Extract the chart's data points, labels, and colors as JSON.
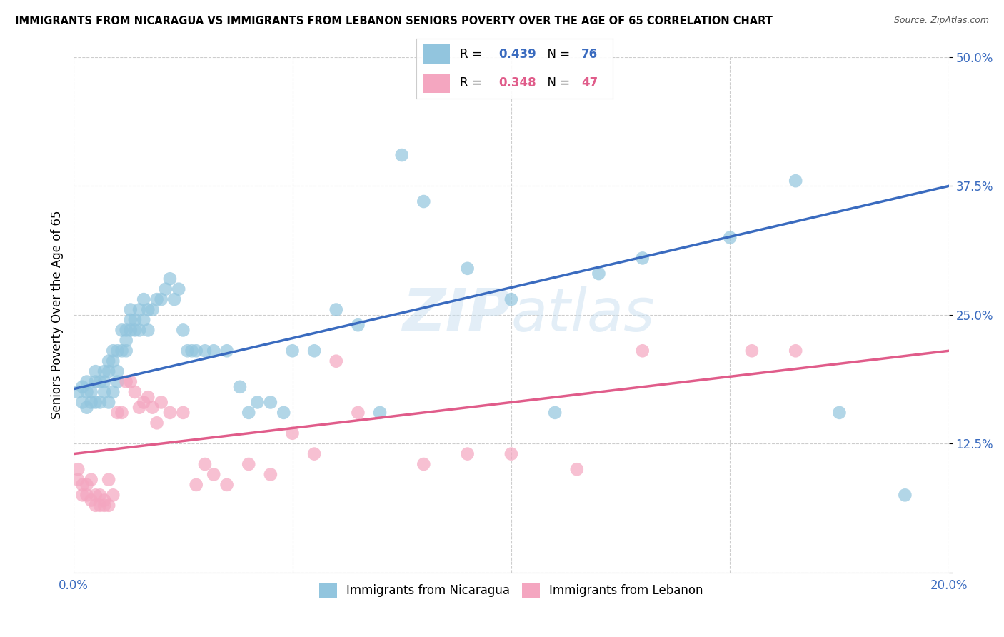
{
  "title": "IMMIGRANTS FROM NICARAGUA VS IMMIGRANTS FROM LEBANON SENIORS POVERTY OVER THE AGE OF 65 CORRELATION CHART",
  "source": "Source: ZipAtlas.com",
  "ylabel": "Seniors Poverty Over the Age of 65",
  "xlim": [
    0.0,
    0.2
  ],
  "ylim": [
    0.0,
    0.5
  ],
  "xticks": [
    0.0,
    0.05,
    0.1,
    0.15,
    0.2
  ],
  "xtick_labels": [
    "0.0%",
    "",
    "",
    "",
    "20.0%"
  ],
  "ytick_labels": [
    "",
    "12.5%",
    "25.0%",
    "37.5%",
    "50.0%"
  ],
  "yticks": [
    0.0,
    0.125,
    0.25,
    0.375,
    0.5
  ],
  "watermark": "ZIPatlas",
  "nicaragua_color": "#92c5de",
  "lebanon_color": "#f4a6c0",
  "nicaragua_line_color": "#3a6bbf",
  "lebanon_line_color": "#e05c8a",
  "nicaragua_R": 0.439,
  "nicaragua_N": 76,
  "lebanon_R": 0.348,
  "lebanon_N": 47,
  "nic_line_x0": 0.0,
  "nic_line_y0": 0.178,
  "nic_line_x1": 0.2,
  "nic_line_y1": 0.375,
  "leb_line_x0": 0.0,
  "leb_line_y0": 0.115,
  "leb_line_x1": 0.2,
  "leb_line_y1": 0.215,
  "nicaragua_points_x": [
    0.001,
    0.002,
    0.002,
    0.003,
    0.003,
    0.003,
    0.004,
    0.004,
    0.005,
    0.005,
    0.005,
    0.006,
    0.006,
    0.007,
    0.007,
    0.007,
    0.008,
    0.008,
    0.008,
    0.009,
    0.009,
    0.009,
    0.01,
    0.01,
    0.01,
    0.011,
    0.011,
    0.012,
    0.012,
    0.012,
    0.013,
    0.013,
    0.013,
    0.014,
    0.014,
    0.015,
    0.015,
    0.016,
    0.016,
    0.017,
    0.017,
    0.018,
    0.019,
    0.02,
    0.021,
    0.022,
    0.023,
    0.024,
    0.025,
    0.026,
    0.027,
    0.028,
    0.03,
    0.032,
    0.035,
    0.038,
    0.04,
    0.042,
    0.045,
    0.048,
    0.05,
    0.055,
    0.06,
    0.065,
    0.07,
    0.075,
    0.08,
    0.09,
    0.1,
    0.11,
    0.12,
    0.13,
    0.15,
    0.165,
    0.175,
    0.19
  ],
  "nicaragua_points_y": [
    0.175,
    0.165,
    0.18,
    0.16,
    0.185,
    0.175,
    0.165,
    0.175,
    0.165,
    0.195,
    0.185,
    0.165,
    0.185,
    0.175,
    0.185,
    0.195,
    0.165,
    0.195,
    0.205,
    0.175,
    0.215,
    0.205,
    0.195,
    0.185,
    0.215,
    0.215,
    0.235,
    0.215,
    0.225,
    0.235,
    0.235,
    0.245,
    0.255,
    0.235,
    0.245,
    0.235,
    0.255,
    0.245,
    0.265,
    0.235,
    0.255,
    0.255,
    0.265,
    0.265,
    0.275,
    0.285,
    0.265,
    0.275,
    0.235,
    0.215,
    0.215,
    0.215,
    0.215,
    0.215,
    0.215,
    0.18,
    0.155,
    0.165,
    0.165,
    0.155,
    0.215,
    0.215,
    0.255,
    0.24,
    0.155,
    0.405,
    0.36,
    0.295,
    0.265,
    0.155,
    0.29,
    0.305,
    0.325,
    0.38,
    0.155,
    0.075
  ],
  "lebanon_points_x": [
    0.001,
    0.001,
    0.002,
    0.002,
    0.003,
    0.003,
    0.004,
    0.004,
    0.005,
    0.005,
    0.006,
    0.006,
    0.007,
    0.007,
    0.008,
    0.008,
    0.009,
    0.01,
    0.011,
    0.012,
    0.013,
    0.014,
    0.015,
    0.016,
    0.017,
    0.018,
    0.019,
    0.02,
    0.022,
    0.025,
    0.028,
    0.03,
    0.032,
    0.035,
    0.04,
    0.045,
    0.05,
    0.055,
    0.06,
    0.065,
    0.08,
    0.09,
    0.1,
    0.115,
    0.13,
    0.155,
    0.165
  ],
  "lebanon_points_y": [
    0.1,
    0.09,
    0.085,
    0.075,
    0.085,
    0.075,
    0.07,
    0.09,
    0.075,
    0.065,
    0.075,
    0.065,
    0.07,
    0.065,
    0.065,
    0.09,
    0.075,
    0.155,
    0.155,
    0.185,
    0.185,
    0.175,
    0.16,
    0.165,
    0.17,
    0.16,
    0.145,
    0.165,
    0.155,
    0.155,
    0.085,
    0.105,
    0.095,
    0.085,
    0.105,
    0.095,
    0.135,
    0.115,
    0.205,
    0.155,
    0.105,
    0.115,
    0.115,
    0.1,
    0.215,
    0.215,
    0.215
  ]
}
